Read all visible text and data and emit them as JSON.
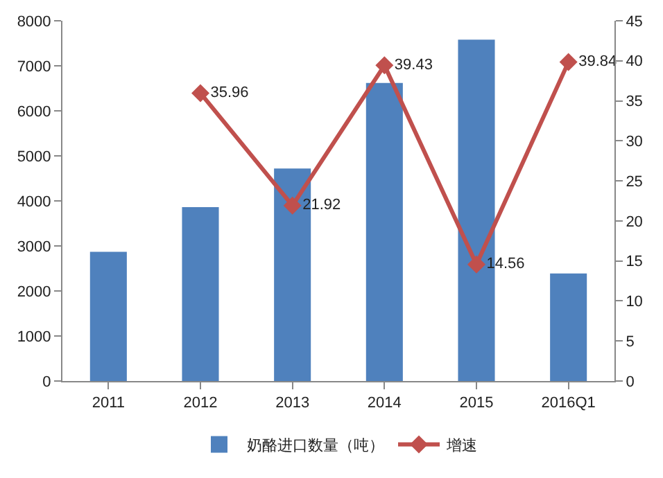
{
  "chart_data": {
    "type": "bar",
    "categories": [
      "2011",
      "2012",
      "2013",
      "2014",
      "2015",
      "2016Q1"
    ],
    "series": [
      {
        "name": "奶酪进口数量（吨）",
        "color": "#4f81bd",
        "values": [
          2870,
          3860,
          4720,
          6620,
          7580,
          2390
        ]
      },
      {
        "name": "增速",
        "type": "line",
        "axis": "y2",
        "color": "#c0504d",
        "marker": "diamond",
        "values": [
          null,
          35.96,
          21.92,
          39.43,
          14.56,
          39.84
        ],
        "value_labels": [
          null,
          "35.96",
          "21.92",
          "39.43",
          "14.56",
          "39.84"
        ]
      }
    ],
    "ylim": [
      0,
      8000
    ],
    "yticks": [
      0,
      1000,
      2000,
      3000,
      4000,
      5000,
      6000,
      7000,
      8000
    ],
    "y2lim": [
      0,
      45
    ],
    "y2ticks": [
      0,
      5,
      10,
      15,
      20,
      25,
      30,
      35,
      40,
      45
    ],
    "grid": false,
    "legend": "bottom"
  }
}
